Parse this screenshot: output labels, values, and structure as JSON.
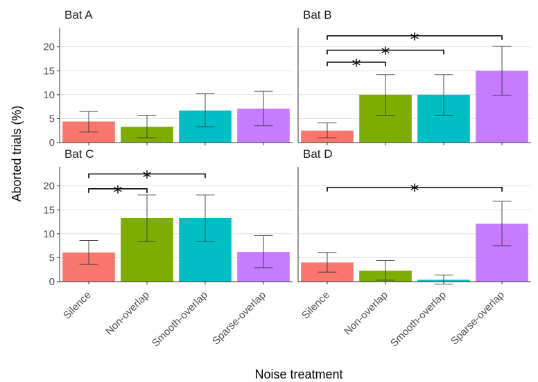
{
  "chart_data": {
    "type": "bar",
    "facet_layout": "2x2",
    "categories": [
      "Silence",
      "Non-overlap",
      "Smooth-overlap",
      "Sparse-overlap"
    ],
    "colors": [
      "#F8766D",
      "#7CAE00",
      "#00BFC4",
      "#C77CFF"
    ],
    "xlabel": "Noise treatment",
    "ylabel": "Aborted trials (%)",
    "ylim": [
      0,
      24
    ],
    "yticks": [
      0,
      5,
      10,
      15,
      20
    ],
    "grid": true,
    "error_bars": true,
    "significance_marker": "*",
    "panels": [
      {
        "name": "Bat A",
        "values": [
          4.4,
          3.3,
          6.7,
          7.1
        ],
        "err_low": [
          2.2,
          1.0,
          3.3,
          3.5
        ],
        "err_high": [
          6.5,
          5.7,
          10.2,
          10.7
        ],
        "significance": []
      },
      {
        "name": "Bat B",
        "values": [
          2.5,
          10.0,
          10.0,
          15.0
        ],
        "err_low": [
          1.0,
          5.7,
          5.7,
          9.9
        ],
        "err_high": [
          4.1,
          14.2,
          14.2,
          20.1
        ],
        "significance": [
          {
            "from": 0,
            "to": 1,
            "y": 16.8
          },
          {
            "from": 0,
            "to": 2,
            "y": 19.3
          },
          {
            "from": 0,
            "to": 3,
            "y": 22.3
          }
        ]
      },
      {
        "name": "Bat C",
        "values": [
          6.1,
          13.3,
          13.3,
          6.2
        ],
        "err_low": [
          3.6,
          8.4,
          8.4,
          2.9
        ],
        "err_high": [
          8.6,
          18.1,
          18.1,
          9.6
        ],
        "significance": [
          {
            "from": 0,
            "to": 1,
            "y": 19.4
          },
          {
            "from": 0,
            "to": 2,
            "y": 22.5
          }
        ]
      },
      {
        "name": "Bat D",
        "values": [
          4.0,
          2.3,
          0.4,
          12.1
        ],
        "err_low": [
          2.0,
          0.3,
          -0.5,
          7.5
        ],
        "err_high": [
          6.1,
          4.4,
          1.4,
          16.8
        ],
        "significance": [
          {
            "from": 0,
            "to": 3,
            "y": 19.7
          }
        ]
      }
    ]
  }
}
